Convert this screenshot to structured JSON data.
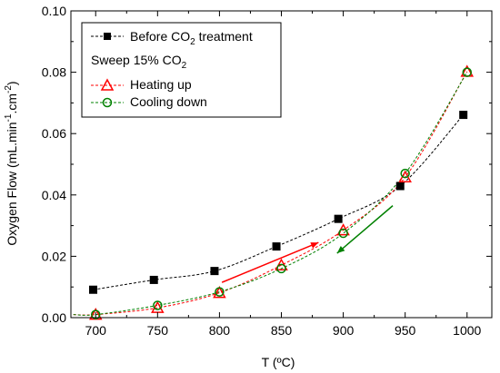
{
  "chart_data": {
    "type": "line",
    "xlabel": "T (ºC)",
    "ylabel": {
      "base": "Oxygen Flow (mL.min",
      "exp1": "-1",
      "mid": ".cm",
      "exp2": "-2",
      "end": ")"
    },
    "xlim": [
      680,
      1020
    ],
    "ylim": [
      0,
      0.1
    ],
    "x_ticks": [
      700,
      750,
      800,
      850,
      900,
      950,
      1000
    ],
    "x_tick_labels": [
      "700",
      "750",
      "800",
      "850",
      "900",
      "950",
      "1000"
    ],
    "y_ticks": [
      0.0,
      0.02,
      0.04,
      0.06,
      0.08,
      0.1
    ],
    "y_tick_labels": [
      "0.00",
      "0.02",
      "0.04",
      "0.06",
      "0.08",
      "0.10"
    ],
    "legend_position": "top-left",
    "legend_group_label": {
      "base": "Sweep 15% CO",
      "sub": "2"
    },
    "series": [
      {
        "name": {
          "base": "Before CO",
          "sub": "2",
          "tail": " treatment"
        },
        "marker": "square",
        "color": "#000000",
        "x": [
          698,
          747,
          796,
          846,
          896,
          946,
          997
        ],
        "y": [
          0.0091,
          0.0123,
          0.0152,
          0.0232,
          0.0322,
          0.0429,
          0.0661
        ]
      },
      {
        "name": {
          "base": "Heating up",
          "sub": "",
          "tail": ""
        },
        "marker": "triangle",
        "color": "#ff0000",
        "x": [
          700,
          750,
          800,
          850,
          900,
          950,
          1000
        ],
        "y": [
          0.001,
          0.0032,
          0.0081,
          0.0171,
          0.0285,
          0.0458,
          0.0802
        ]
      },
      {
        "name": {
          "base": "Cooling down",
          "sub": "",
          "tail": ""
        },
        "marker": "circle",
        "color": "#008000",
        "x": [
          700,
          750,
          800,
          850,
          900,
          950,
          1000
        ],
        "y": [
          0.001,
          0.004,
          0.0084,
          0.016,
          0.0275,
          0.047,
          0.08
        ]
      }
    ],
    "annotations": [
      {
        "type": "arrow",
        "color": "#ff0000",
        "from": [
          802,
          0.0115
        ],
        "to": [
          880,
          0.0245
        ]
      },
      {
        "type": "arrow",
        "color": "#008000",
        "from": [
          940,
          0.0365
        ],
        "to": [
          895,
          0.021
        ]
      }
    ]
  }
}
